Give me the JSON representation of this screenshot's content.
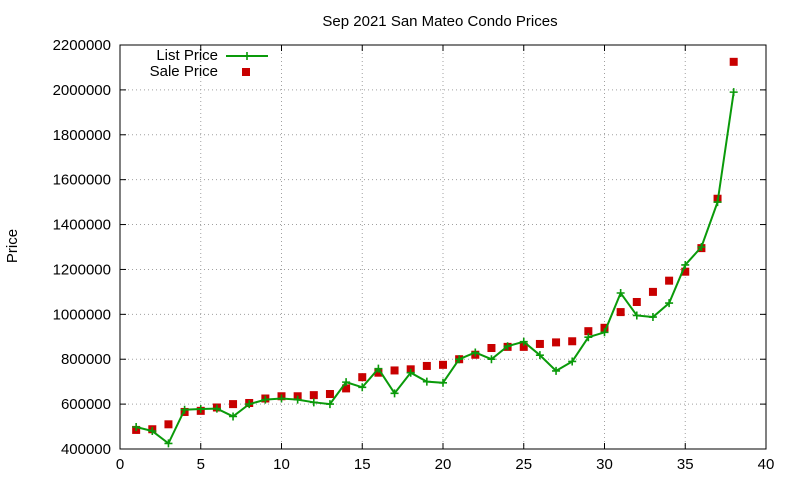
{
  "chart_data": {
    "type": "scatter",
    "title": "Sep 2021 San Mateo Condo Prices",
    "xlabel": "",
    "ylabel": "Price",
    "xlim": [
      0,
      40
    ],
    "ylim": [
      400000,
      2200000
    ],
    "xticks": [
      "0",
      "5",
      "10",
      "15",
      "20",
      "25",
      "30",
      "35",
      "40"
    ],
    "yticks": [
      "400000",
      "600000",
      "800000",
      "1000000",
      "1200000",
      "1400000",
      "1600000",
      "1800000",
      "2000000",
      "2200000"
    ],
    "grid": true,
    "legend_position": "top-left",
    "x": [
      1,
      2,
      3,
      4,
      5,
      6,
      7,
      8,
      9,
      10,
      11,
      12,
      13,
      14,
      15,
      16,
      17,
      18,
      19,
      20,
      21,
      22,
      23,
      24,
      25,
      26,
      27,
      28,
      29,
      30,
      31,
      32,
      33,
      34,
      35,
      36,
      37,
      38
    ],
    "series": [
      {
        "name": "List Price",
        "style": "linespoints",
        "color": "#0a9a0a",
        "values": [
          498000,
          480000,
          425000,
          575000,
          578000,
          580000,
          545000,
          600000,
          620000,
          625000,
          620000,
          608000,
          600000,
          698000,
          675000,
          758000,
          648000,
          740000,
          700000,
          695000,
          800000,
          830000,
          800000,
          858000,
          878000,
          818000,
          748000,
          790000,
          898000,
          920000,
          1095000,
          995000,
          988000,
          1050000,
          1220000,
          1300000,
          1500000,
          1990000
        ]
      },
      {
        "name": "Sale Price",
        "style": "points",
        "color": "#c80000",
        "values": [
          485000,
          488000,
          510000,
          565000,
          570000,
          585000,
          600000,
          605000,
          625000,
          635000,
          635000,
          640000,
          645000,
          670000,
          720000,
          740000,
          750000,
          755000,
          770000,
          775000,
          800000,
          820000,
          850000,
          855000,
          855000,
          868000,
          875000,
          880000,
          925000,
          940000,
          1010000,
          1055000,
          1100000,
          1150000,
          1190000,
          1295000,
          1515000,
          2125000
        ]
      }
    ]
  }
}
